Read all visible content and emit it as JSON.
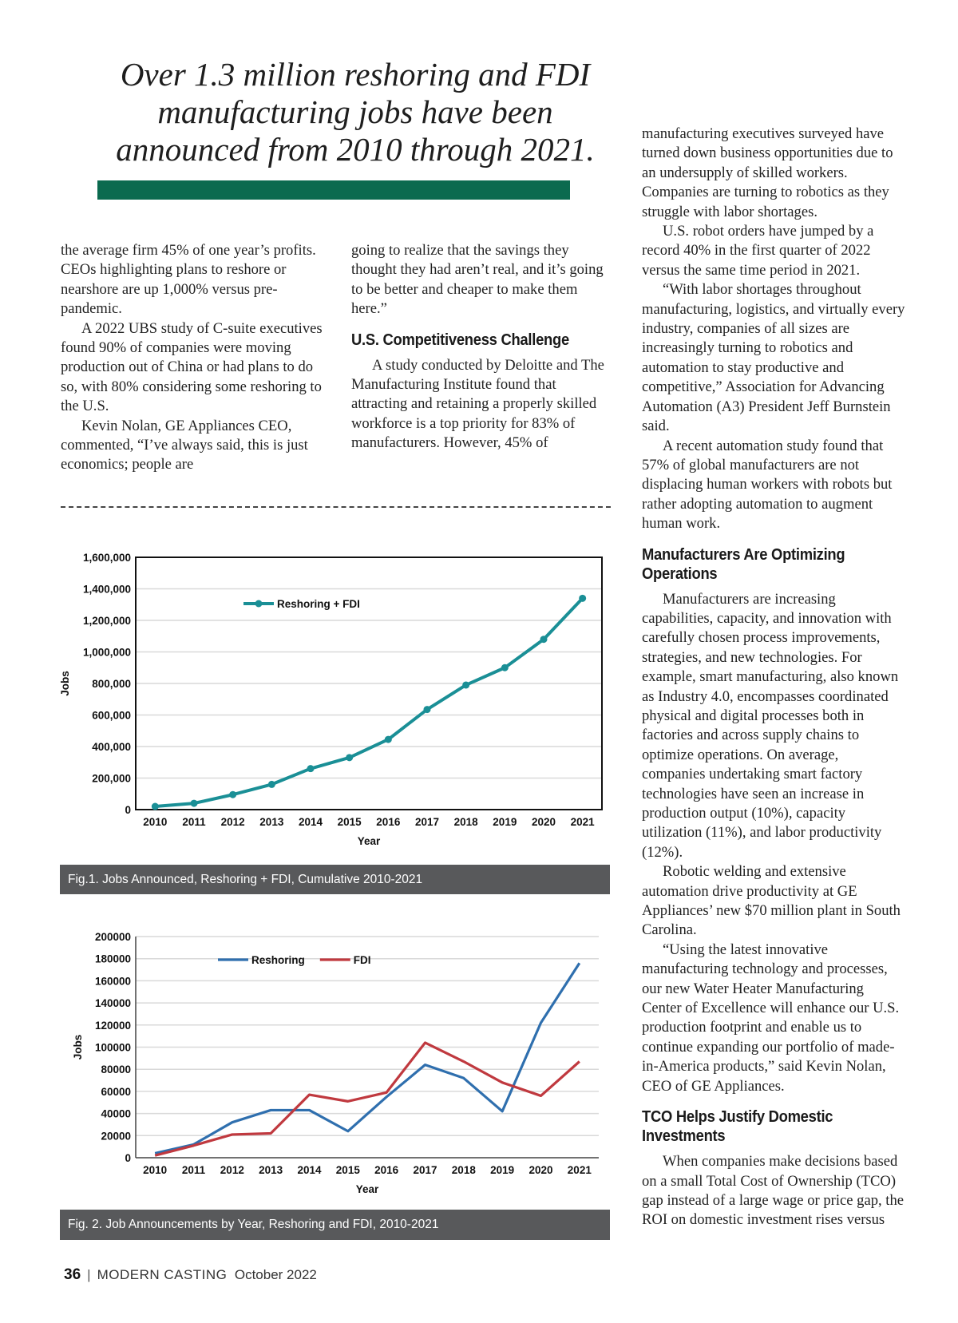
{
  "headline": [
    "Over 1.3 million reshoring and FDI",
    "manufacturing jobs have been",
    "announced from 2010 through 2021."
  ],
  "col1": [
    "the average firm 45% of one year’s profits. CEOs highlighting plans to reshore or nearshore are up 1,000% versus pre-pandemic.",
    "A 2022 UBS study of C-suite executives found 90% of companies were moving production out of China or had plans to do so, with 80% considering some reshoring to the U.S.",
    "Kevin Nolan, GE Appliances CEO, commented, “I’ve always said, this is just economics; people are"
  ],
  "col2": {
    "p1": "going to realize that the savings they thought they had aren’t real, and it’s going to be better and cheaper to make them here.”",
    "heading": "U.S. Competitiveness Challenge",
    "p2": "A study conducted by Deloitte and The Manufacturing Institute found that attracting and retaining a properly skilled workforce is a top priority for 83% of manufacturers. However, 45% of"
  },
  "col3": {
    "p1": "manufacturing executives surveyed have turned down business opportunities due to an undersupply of skilled workers. Companies are turning to robotics as they struggle with labor shortages.",
    "p2": "U.S. robot orders have jumped by a record 40% in the first quarter of 2022 versus the same time period in 2021.",
    "p3": "“With labor shortages throughout manufacturing, logistics, and virtually every industry, companies of all sizes are increasingly turning to robotics and automation to stay productive and competitive,” Association for Advancing Automation (A3) President Jeff Burnstein said.",
    "p4": "A recent automation study found that 57% of global manufacturers are not displacing human workers with robots but rather adopting automation to augment human work.",
    "heading1": "Manufacturers Are Optimizing Operations",
    "p5": "Manufacturers are increasing capabilities, capacity, and innovation with carefully chosen process improvements, strategies, and new technologies. For example, smart manufacturing, also known as Industry 4.0, encompasses coordinated physical and digital processes both in factories and across supply chains to optimize operations. On average, companies undertaking smart factory technologies have seen an increase in production output (10%), capacity utilization (11%), and labor productivity (12%).",
    "p6": "Robotic welding and extensive automation drive productivity at GE Appliances’ new $70 million plant in South Carolina.",
    "p7": "“Using the latest innovative manufacturing technology and processes, our new Water Heater Manufacturing Center of Excellence will enhance our U.S. production footprint and enable us to continue expanding our portfolio of made-in-America products,” said Kevin Nolan, CEO of GE Appliances.",
    "heading2": "TCO Helps Justify Domestic Investments",
    "p8": "When companies make decisions based on a small Total Cost of Ownership (TCO) gap instead of a large wage or price gap, the ROI on domestic investment rises versus"
  },
  "chart_data": [
    {
      "type": "line",
      "caption": "Fig.1. Jobs Announced, Reshoring + FDI, Cumulative 2010-2021",
      "xlabel": "Year",
      "ylabel": "Jobs",
      "categories": [
        "2010",
        "2011",
        "2012",
        "2013",
        "2014",
        "2015",
        "2016",
        "2017",
        "2018",
        "2019",
        "2020",
        "2021"
      ],
      "ylim": [
        0,
        1600000
      ],
      "yticks": [
        0,
        200000,
        400000,
        600000,
        800000,
        1000000,
        1200000,
        1400000,
        1600000
      ],
      "ytick_labels": [
        "0",
        "200,000",
        "400,000",
        "600,000",
        "800,000",
        "1,000,000",
        "1,200,000",
        "1,400,000",
        "1,600,000"
      ],
      "grid": true,
      "legend": "top-left",
      "series": [
        {
          "name": "Reshoring + FDI",
          "color": "#1a8f96",
          "markers": true,
          "values": [
            20000,
            40000,
            95000,
            160000,
            260000,
            330000,
            445000,
            635000,
            790000,
            900000,
            1080000,
            1340000
          ]
        }
      ]
    },
    {
      "type": "line",
      "caption": "Fig. 2. Job Announcements by Year, Reshoring and FDI, 2010-2021",
      "xlabel": "Year",
      "ylabel": "Jobs",
      "categories": [
        "2010",
        "2011",
        "2012",
        "2013",
        "2014",
        "2015",
        "2016",
        "2017",
        "2018",
        "2019",
        "2020",
        "2021"
      ],
      "ylim": [
        0,
        200000
      ],
      "yticks": [
        0,
        20000,
        40000,
        60000,
        80000,
        100000,
        120000,
        140000,
        160000,
        180000,
        200000
      ],
      "ytick_labels": [
        "0",
        "20000",
        "40000",
        "60000",
        "80000",
        "100000",
        "120000",
        "140000",
        "160000",
        "180000",
        "200000"
      ],
      "grid": true,
      "legend": "top-left",
      "series": [
        {
          "name": "Reshoring",
          "color": "#2f6fae",
          "markers": false,
          "values": [
            4000,
            12000,
            32000,
            43000,
            43000,
            24000,
            55000,
            84000,
            72000,
            42000,
            122000,
            176000
          ]
        },
        {
          "name": "FDI",
          "color": "#c0393f",
          "markers": false,
          "values": [
            2000,
            11000,
            21000,
            22000,
            57000,
            51000,
            59000,
            104000,
            87000,
            68000,
            56000,
            87000
          ]
        }
      ]
    }
  ],
  "footer": {
    "page": "36",
    "separator": "|",
    "magazine": "MODERN CASTING",
    "issue": "October 2022"
  }
}
